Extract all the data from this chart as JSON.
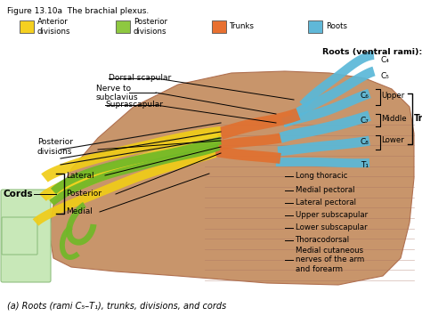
{
  "title": "Figure 13.10a  The brachial plexus.",
  "figure_bg": "#ffffff",
  "body_color": "#c8956b",
  "body_dark": "#b07858",
  "legend_items": [
    {
      "label": "Anterior\ndivisions",
      "color": "#f5d020"
    },
    {
      "label": "Posterior\ndivisions",
      "color": "#8ec840"
    },
    {
      "label": "Trunks",
      "color": "#e87030"
    },
    {
      "label": "Roots",
      "color": "#60b8d8"
    }
  ],
  "bottom_label": "(a) Roots (rami C₅–T₁), trunks, divisions, and cords"
}
